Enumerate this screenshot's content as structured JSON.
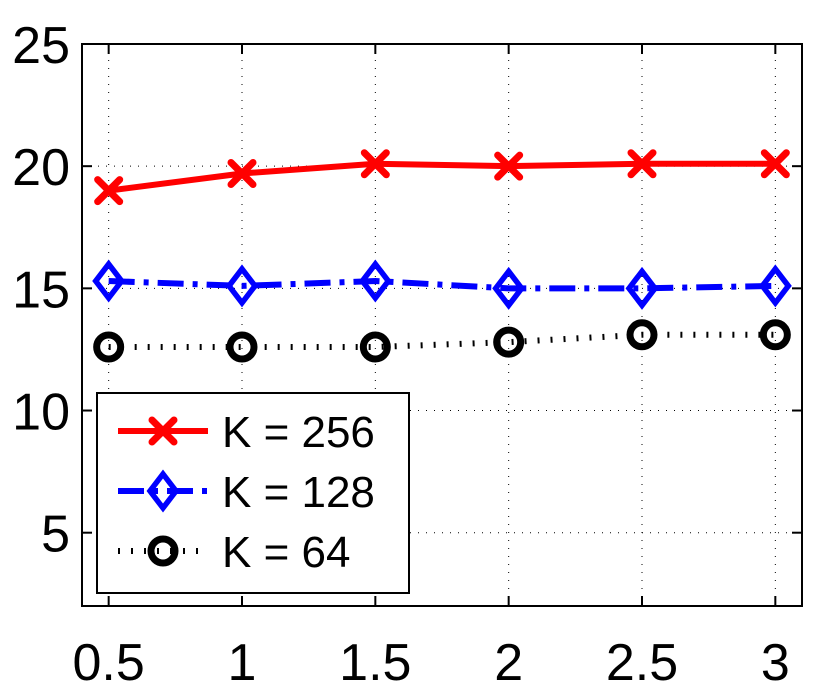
{
  "chart_data": {
    "type": "line",
    "title": "",
    "xlabel": "",
    "ylabel": "",
    "x": [
      0.5,
      1,
      1.5,
      2,
      2.5,
      3
    ],
    "xlim": [
      0.4,
      3.1
    ],
    "ylim": [
      2,
      25
    ],
    "xticks": [
      0.5,
      1,
      1.5,
      2,
      2.5,
      3
    ],
    "xtick_labels": [
      "0.5",
      "1",
      "1.5",
      "2",
      "2.5",
      "3"
    ],
    "yticks": [
      5,
      10,
      15,
      20,
      25
    ],
    "ytick_labels": [
      "5",
      "10",
      "15",
      "20",
      "25"
    ],
    "grid": true,
    "legend_position": "lower-left",
    "series": [
      {
        "name": "K = 256",
        "values": [
          19.0,
          19.7,
          20.1,
          20.0,
          20.1,
          20.1
        ],
        "color": "#ff0000",
        "line_style": "solid",
        "marker": "x"
      },
      {
        "name": "K = 128",
        "values": [
          15.3,
          15.1,
          15.3,
          15.0,
          15.0,
          15.1
        ],
        "color": "#0000ff",
        "line_style": "dash-dot",
        "marker": "diamond"
      },
      {
        "name": "K = 64",
        "values": [
          12.6,
          12.6,
          12.6,
          12.8,
          13.1,
          13.1
        ],
        "color": "#000000",
        "line_style": "dotted",
        "marker": "circle"
      }
    ]
  }
}
